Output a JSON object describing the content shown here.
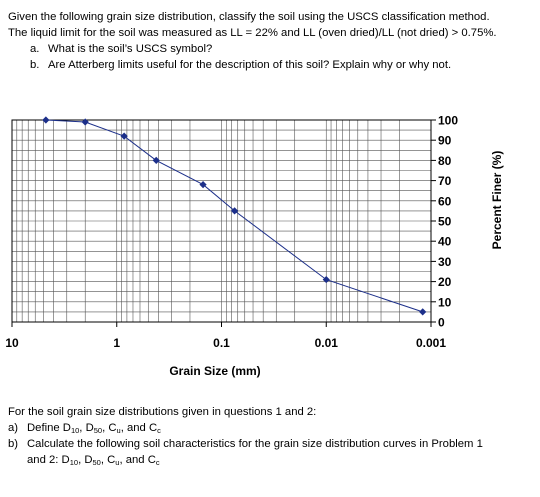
{
  "problem": {
    "intro_line1": "Given the following grain size distribution, classify the soil using the USCS classification method.",
    "intro_line2": "The liquid limit for the soil was measured as LL = 22% and LL (oven dried)/LL (not dried) > 0.75%.",
    "part_a_marker": "a.",
    "part_a_text": "What is the soil’s USCS symbol?",
    "part_b_marker": "b.",
    "part_b_text": "Are Atterberg limits useful for the description of this soil? Explain why or why not."
  },
  "chart_data": {
    "type": "line",
    "xscale": "log",
    "x_reversed": true,
    "xlim": [
      10,
      0.001
    ],
    "ylim": [
      0,
      100
    ],
    "xlabel": "Grain Size (mm)",
    "ylabel": "Percent Finer (%)",
    "x_tick_labels": [
      "10",
      "1",
      "0.1",
      "0.01",
      "0.001"
    ],
    "y_tick_labels": [
      "0",
      "10",
      "20",
      "30",
      "40",
      "50",
      "60",
      "70",
      "80",
      "90",
      "100"
    ],
    "grid": true,
    "line_color": "#1c2f8a",
    "marker_color": "#1c2f8a",
    "series": [
      {
        "x": [
          4.75,
          2.0,
          0.85,
          0.42,
          0.15,
          0.075,
          0.01,
          0.0012
        ],
        "values": [
          100,
          99,
          92,
          80,
          68,
          55,
          21,
          5
        ]
      }
    ]
  },
  "followup": {
    "intro": "For the soil grain size distributions given in questions 1 and 2:",
    "a_marker": "a)",
    "a_text_html": "Define D<sub>10</sub>, D<sub>50</sub>, C<sub>u</sub>, and C<sub>c</sub>",
    "b_marker": "b)",
    "b_text": "Calculate the following soil characteristics for the grain size distribution curves in Problem 1",
    "b_text_line2_html": "and 2: D<sub>10</sub>, D<sub>50</sub>, C<sub>u</sub>, and C<sub>c</sub>"
  }
}
